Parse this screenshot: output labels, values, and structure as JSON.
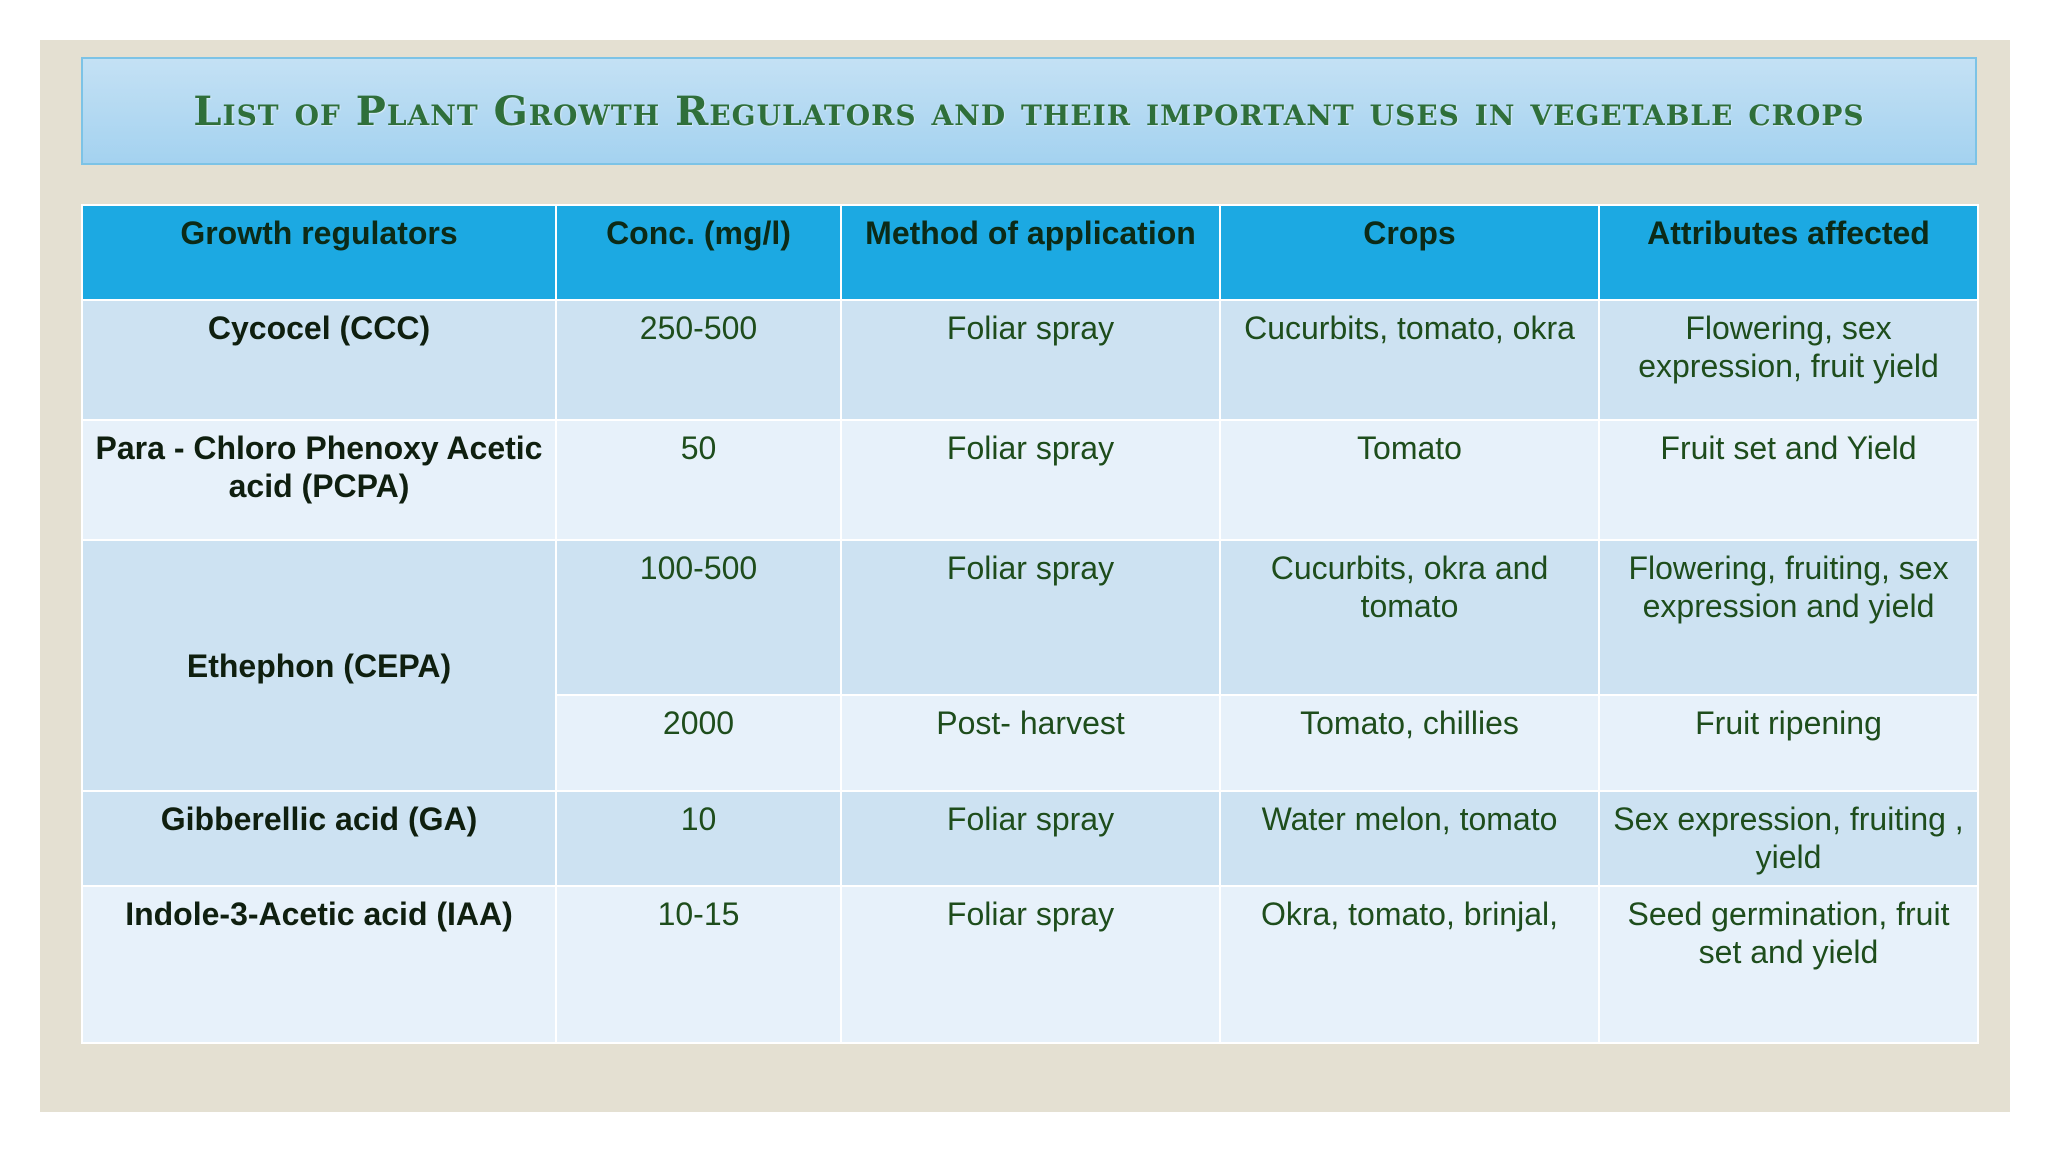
{
  "title": "List of Plant Growth Regulators and their important uses in vegetable crops",
  "table": {
    "headers": {
      "regulator": "Growth regulators",
      "conc": "Conc. (mg/l)",
      "method": "Method of application",
      "crops": "Crops",
      "attributes": "Attributes affected"
    },
    "rows": [
      {
        "regulator": "Cycocel (CCC)",
        "conc": "250-500",
        "method": "Foliar spray",
        "crops": "Cucurbits, tomato, okra",
        "attributes": "Flowering, sex expression, fruit yield"
      },
      {
        "regulator": "Para - Chloro Phenoxy Acetic acid  (PCPA)",
        "conc": "50",
        "method": "Foliar spray",
        "crops": "Tomato",
        "attributes": "Fruit set  and Yield"
      },
      {
        "regulator": "Ethephon (CEPA)",
        "conc": "100-500",
        "method": "Foliar spray",
        "crops": "Cucurbits, okra and tomato",
        "attributes": "Flowering, fruiting, sex expression and yield"
      },
      {
        "conc": "2000",
        "method": "Post- harvest",
        "crops": "Tomato, chillies",
        "attributes": "Fruit ripening"
      },
      {
        "regulator": "Gibberellic acid (GA)",
        "conc": "10",
        "method": "Foliar spray",
        "crops": "Water melon, tomato",
        "attributes": "Sex expression, fruiting , yield"
      },
      {
        "regulator": "Indole-3-Acetic acid (IAA)",
        "conc": "10-15",
        "method": "Foliar spray",
        "crops": "Okra, tomato, brinjal,",
        "attributes": "Seed germination, fruit set and yield"
      }
    ]
  }
}
